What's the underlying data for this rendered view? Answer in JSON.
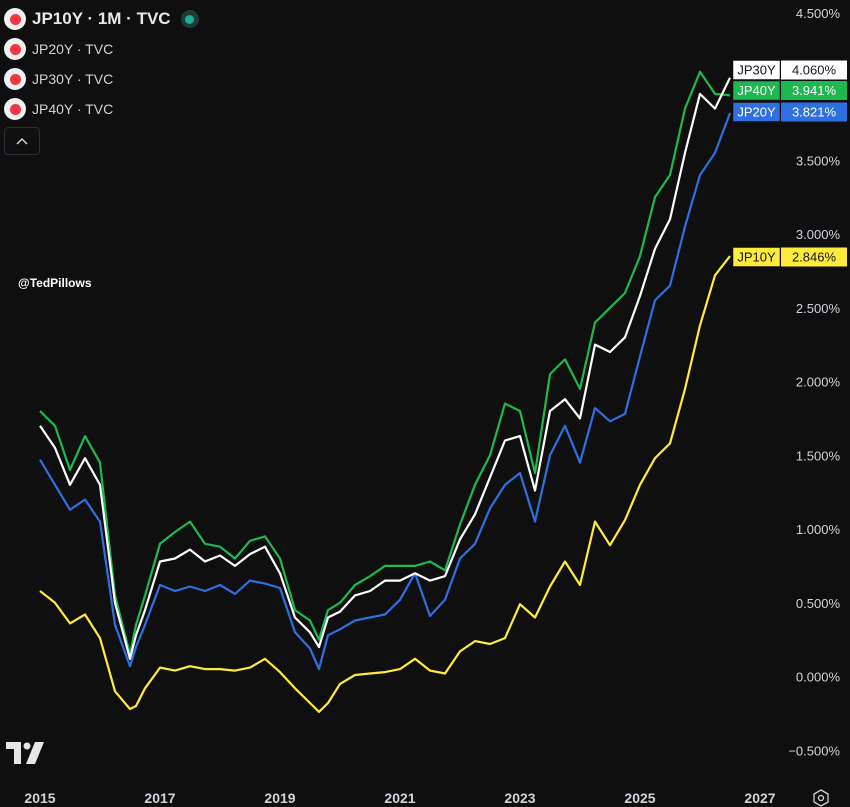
{
  "legend": {
    "main": "JP10Y · 1M · TVC",
    "rows": [
      "JP20Y · TVC",
      "JP30Y · TVC",
      "JP40Y · TVC"
    ]
  },
  "watermark": "@TedPillows",
  "colors": {
    "background": "#0f0f0f",
    "JP10Y": "#ffeb3b",
    "JP20Y": "#2f6fe0",
    "JP30Y": "#ffffff",
    "JP40Y": "#1eb851"
  },
  "icons": [
    "tradingview-logo-icon",
    "chevron-up-icon",
    "settings-icon"
  ],
  "chart_data": {
    "type": "line",
    "xlabel": "",
    "ylabel": "",
    "x_ticks": [
      "2015",
      "2017",
      "2019",
      "2021",
      "2023",
      "2025",
      "2027"
    ],
    "y_ticks": [
      "4.500%",
      "3.500%",
      "3.000%",
      "2.500%",
      "2.000%",
      "1.500%",
      "1.000%",
      "0.500%",
      "0.000%",
      "−0.500%"
    ],
    "ylim": [
      -0.5,
      4.5
    ],
    "xlim": [
      2015.0,
      2027.3
    ],
    "last_labels": [
      {
        "name": "JP30Y",
        "value": "4.060%"
      },
      {
        "name": "JP40Y",
        "value": "3.941%"
      },
      {
        "name": "JP20Y",
        "value": "3.821%"
      },
      {
        "name": "JP10Y",
        "value": "2.846%"
      }
    ],
    "series": [
      {
        "name": "JP10Y",
        "x": [
          2015.0,
          2015.25,
          2015.5,
          2015.75,
          2016.0,
          2016.25,
          2016.5,
          2016.6,
          2016.75,
          2017.0,
          2017.25,
          2017.5,
          2017.75,
          2018.0,
          2018.25,
          2018.5,
          2018.75,
          2019.0,
          2019.25,
          2019.5,
          2019.65,
          2019.8,
          2020.0,
          2020.25,
          2020.5,
          2020.75,
          2021.0,
          2021.25,
          2021.5,
          2021.75,
          2022.0,
          2022.25,
          2022.5,
          2022.75,
          2023.0,
          2023.25,
          2023.5,
          2023.75,
          2024.0,
          2024.25,
          2024.5,
          2024.75,
          2025.0,
          2025.25,
          2025.5,
          2025.75,
          2026.0,
          2026.25,
          2026.5
        ],
        "values": [
          0.58,
          0.5,
          0.36,
          0.42,
          0.26,
          -0.1,
          -0.22,
          -0.2,
          -0.08,
          0.06,
          0.04,
          0.07,
          0.05,
          0.05,
          0.04,
          0.06,
          0.12,
          0.03,
          -0.08,
          -0.18,
          -0.24,
          -0.18,
          -0.05,
          0.01,
          0.02,
          0.03,
          0.05,
          0.12,
          0.04,
          0.02,
          0.17,
          0.24,
          0.22,
          0.26,
          0.49,
          0.4,
          0.61,
          0.78,
          0.62,
          1.05,
          0.89,
          1.06,
          1.3,
          1.48,
          1.58,
          1.95,
          2.38,
          2.72,
          2.85
        ]
      },
      {
        "name": "JP20Y",
        "x": [
          2015.0,
          2015.25,
          2015.5,
          2015.75,
          2016.0,
          2016.25,
          2016.5,
          2016.6,
          2016.75,
          2017.0,
          2017.25,
          2017.5,
          2017.75,
          2018.0,
          2018.25,
          2018.5,
          2018.75,
          2019.0,
          2019.25,
          2019.5,
          2019.65,
          2019.8,
          2020.0,
          2020.25,
          2020.5,
          2020.75,
          2021.0,
          2021.25,
          2021.5,
          2021.75,
          2022.0,
          2022.25,
          2022.5,
          2022.75,
          2023.0,
          2023.25,
          2023.5,
          2023.75,
          2024.0,
          2024.25,
          2024.5,
          2024.75,
          2025.0,
          2025.25,
          2025.5,
          2025.75,
          2026.0,
          2026.25,
          2026.5
        ],
        "values": [
          1.47,
          1.3,
          1.13,
          1.2,
          1.05,
          0.35,
          0.07,
          0.2,
          0.35,
          0.62,
          0.58,
          0.61,
          0.58,
          0.62,
          0.56,
          0.65,
          0.63,
          0.6,
          0.3,
          0.19,
          0.05,
          0.28,
          0.32,
          0.38,
          0.4,
          0.42,
          0.52,
          0.7,
          0.41,
          0.52,
          0.8,
          0.9,
          1.14,
          1.3,
          1.38,
          1.05,
          1.5,
          1.7,
          1.45,
          1.82,
          1.73,
          1.78,
          2.17,
          2.55,
          2.65,
          3.05,
          3.4,
          3.55,
          3.82
        ]
      },
      {
        "name": "JP30Y",
        "x": [
          2015.0,
          2015.25,
          2015.5,
          2015.75,
          2016.0,
          2016.25,
          2016.5,
          2016.6,
          2016.75,
          2017.0,
          2017.25,
          2017.5,
          2017.75,
          2018.0,
          2018.25,
          2018.5,
          2018.75,
          2019.0,
          2019.25,
          2019.5,
          2019.65,
          2019.8,
          2020.0,
          2020.25,
          2020.5,
          2020.75,
          2021.0,
          2021.25,
          2021.5,
          2021.75,
          2022.0,
          2022.25,
          2022.5,
          2022.75,
          2023.0,
          2023.25,
          2023.5,
          2023.75,
          2024.0,
          2024.25,
          2024.5,
          2024.75,
          2025.0,
          2025.25,
          2025.5,
          2025.75,
          2026.0,
          2026.25,
          2026.5
        ],
        "values": [
          1.7,
          1.55,
          1.3,
          1.48,
          1.3,
          0.5,
          0.12,
          0.28,
          0.45,
          0.78,
          0.8,
          0.86,
          0.78,
          0.82,
          0.75,
          0.83,
          0.88,
          0.7,
          0.4,
          0.3,
          0.2,
          0.4,
          0.44,
          0.55,
          0.58,
          0.65,
          0.65,
          0.7,
          0.65,
          0.68,
          0.93,
          1.1,
          1.35,
          1.6,
          1.63,
          1.26,
          1.8,
          1.88,
          1.75,
          2.25,
          2.2,
          2.3,
          2.58,
          2.9,
          3.1,
          3.55,
          3.95,
          3.85,
          4.06
        ]
      },
      {
        "name": "JP40Y",
        "x": [
          2015.0,
          2015.25,
          2015.5,
          2015.75,
          2016.0,
          2016.25,
          2016.5,
          2016.6,
          2016.75,
          2017.0,
          2017.25,
          2017.5,
          2017.75,
          2018.0,
          2018.25,
          2018.5,
          2018.75,
          2019.0,
          2019.25,
          2019.5,
          2019.65,
          2019.8,
          2020.0,
          2020.25,
          2020.5,
          2020.75,
          2021.0,
          2021.25,
          2021.5,
          2021.75,
          2022.0,
          2022.25,
          2022.5,
          2022.75,
          2023.0,
          2023.25,
          2023.5,
          2023.75,
          2024.0,
          2024.25,
          2024.5,
          2024.75,
          2025.0,
          2025.25,
          2025.5,
          2025.75,
          2026.0,
          2026.25,
          2026.5
        ],
        "values": [
          1.8,
          1.7,
          1.4,
          1.63,
          1.45,
          0.55,
          0.15,
          0.35,
          0.55,
          0.9,
          0.98,
          1.05,
          0.9,
          0.88,
          0.8,
          0.92,
          0.95,
          0.8,
          0.45,
          0.38,
          0.25,
          0.45,
          0.5,
          0.62,
          0.68,
          0.75,
          0.75,
          0.75,
          0.78,
          0.72,
          1.03,
          1.3,
          1.5,
          1.85,
          1.8,
          1.38,
          2.05,
          2.15,
          1.95,
          2.4,
          2.5,
          2.6,
          2.85,
          3.25,
          3.4,
          3.85,
          4.1,
          3.95,
          3.94
        ]
      }
    ]
  }
}
